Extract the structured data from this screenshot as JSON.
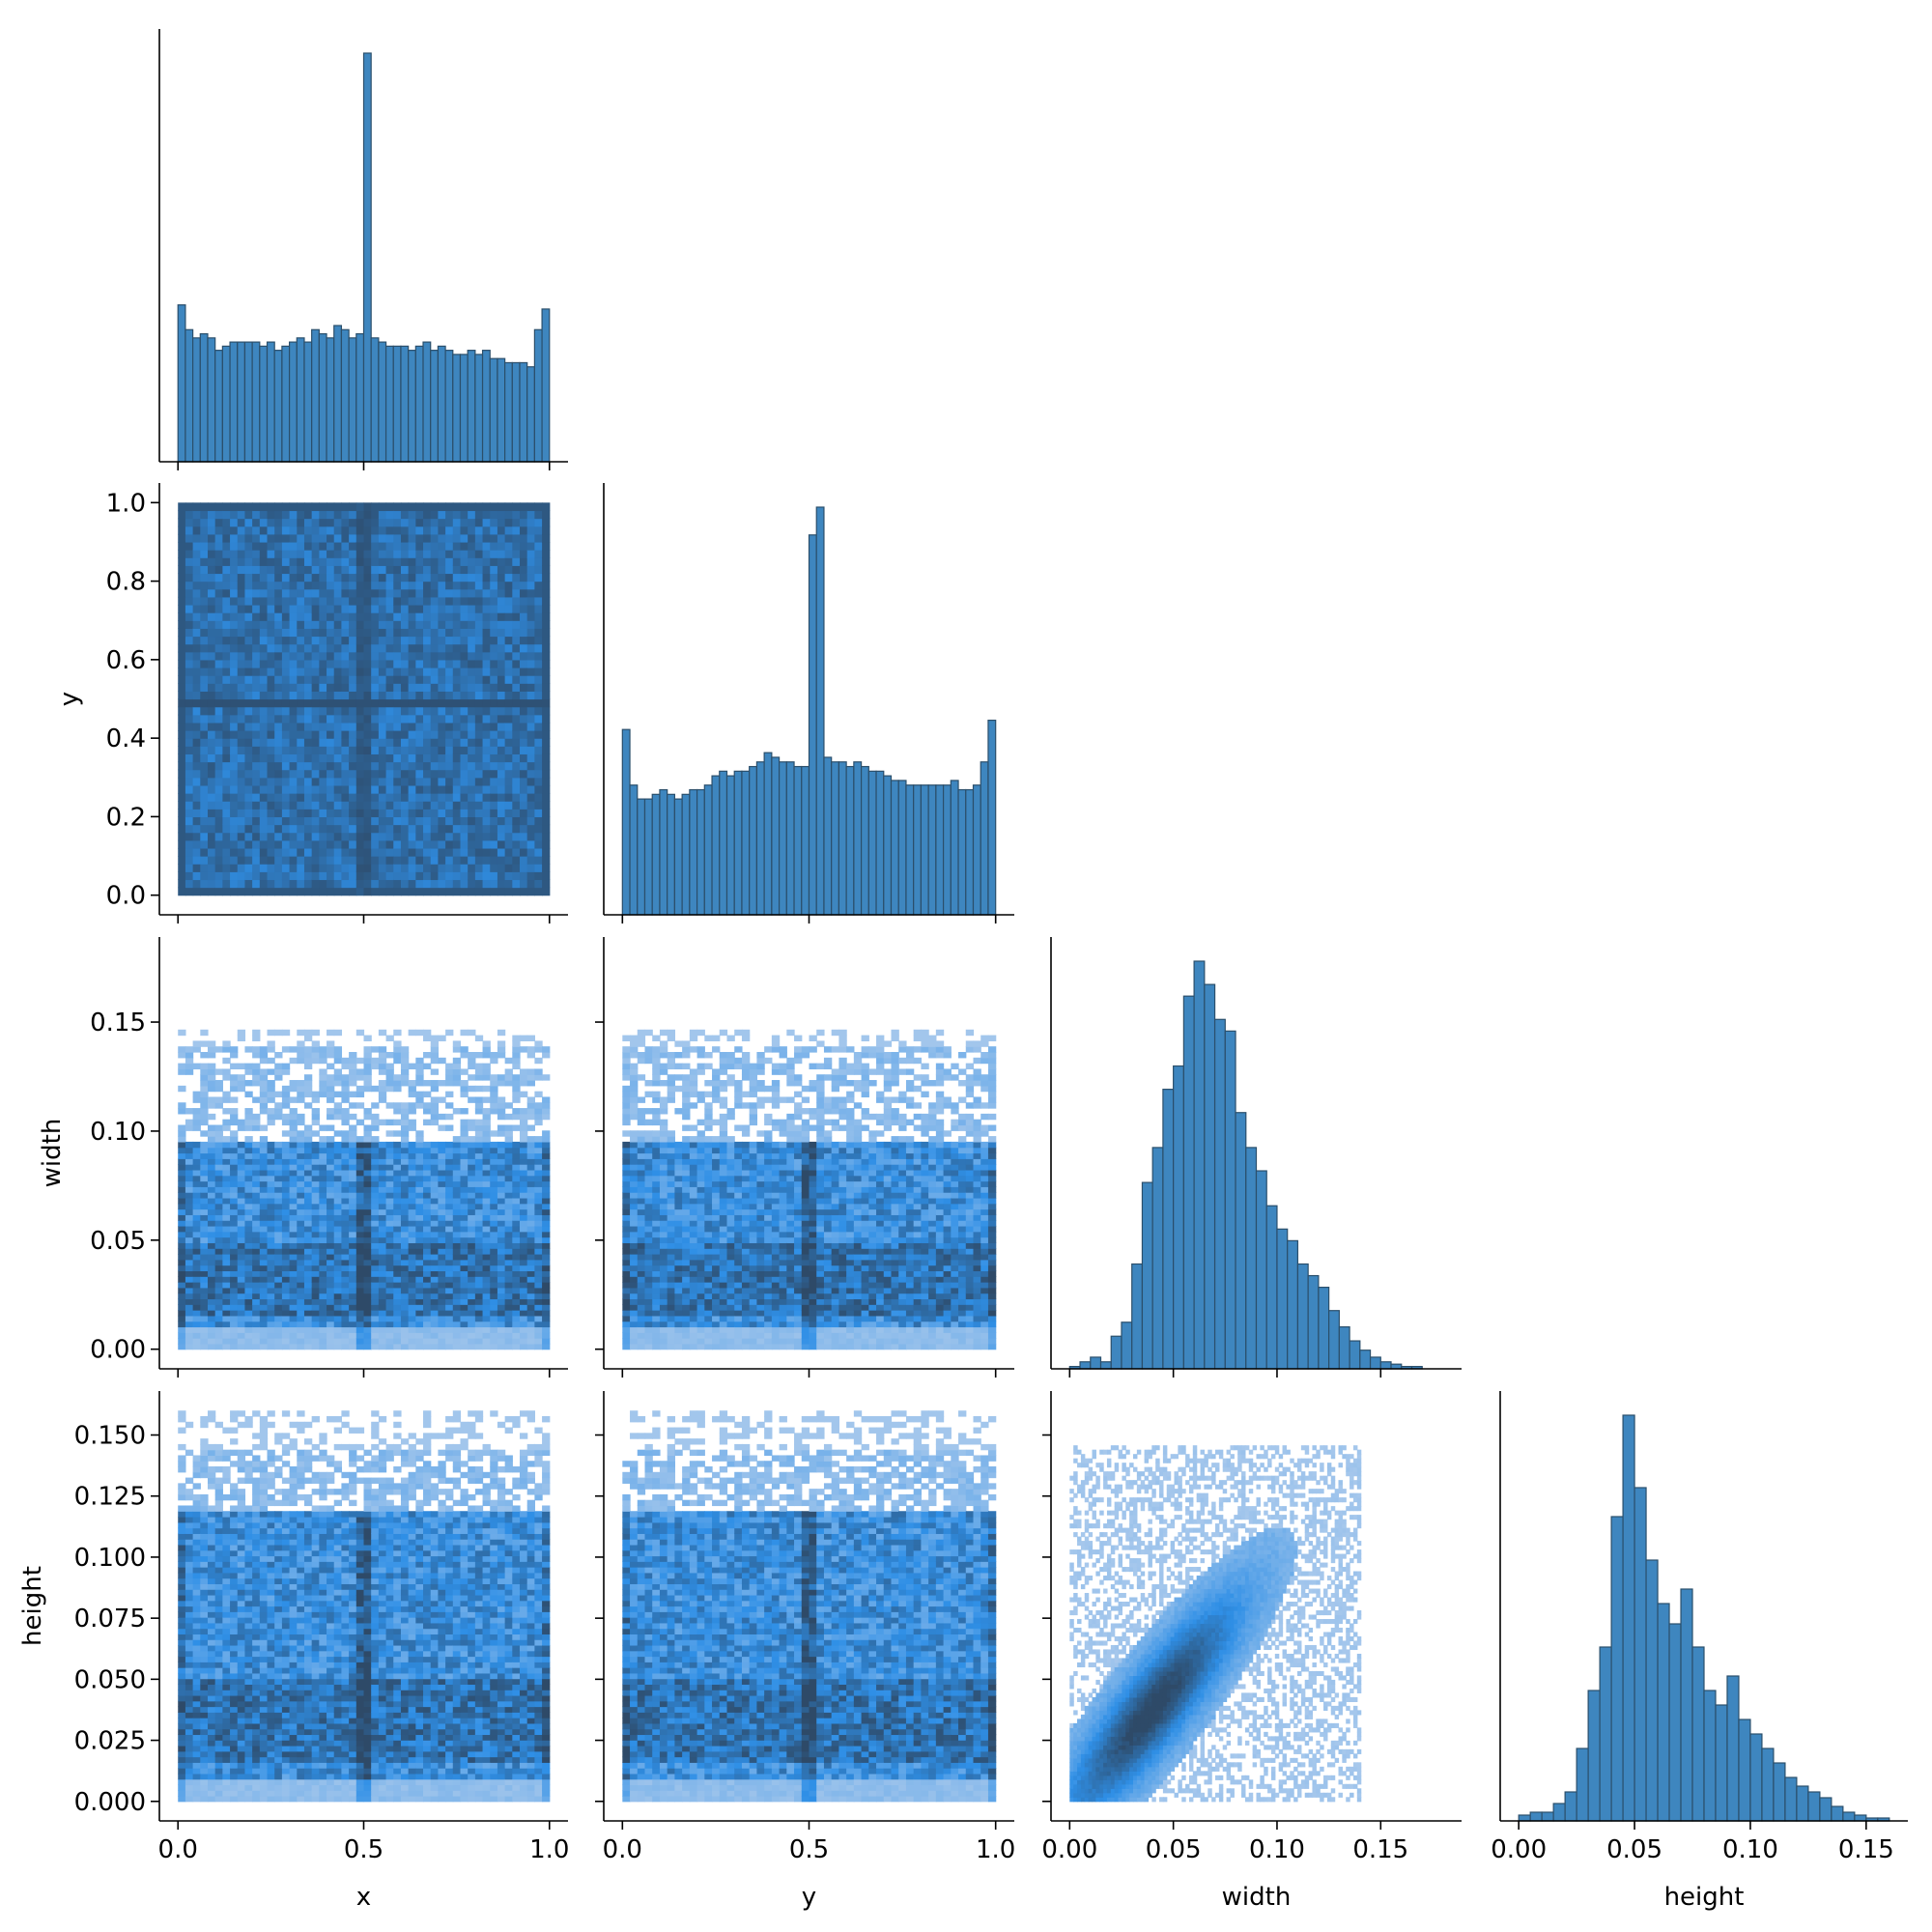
{
  "colors": {
    "hist_fill": "#3e86bf",
    "hist_edge": "#2b4f6b",
    "heat_low": "#a7c8ec",
    "heat_mid": "#2f8fe6",
    "heat_high": "#2e4a68",
    "axis": "#000000"
  },
  "chart_data": {
    "type": "pairplot-corner",
    "variables": [
      "x",
      "y",
      "width",
      "height"
    ],
    "axis_labels": {
      "x": "x",
      "y": "y",
      "width": "width",
      "height": "height"
    },
    "ranges": {
      "x": [
        0.0,
        1.0
      ],
      "y": [
        0.0,
        1.0
      ],
      "width": [
        0.0,
        0.18
      ],
      "height": [
        0.0,
        0.16
      ]
    },
    "ticks": {
      "x": {
        "values": [
          0.0,
          0.5,
          1.0
        ],
        "labels": [
          "0.0",
          "0.5",
          "1.0"
        ]
      },
      "y": {
        "values": [
          0.0,
          0.2,
          0.4,
          0.6,
          0.8,
          1.0
        ],
        "labels": [
          "0.0",
          "0.2",
          "0.4",
          "0.6",
          "0.8",
          "1.0"
        ]
      },
      "y_bottom": {
        "values": [
          0.0,
          0.5,
          1.0
        ],
        "labels": [
          "0.0",
          "0.5",
          "1.0"
        ]
      },
      "width": {
        "values": [
          0.0,
          0.05,
          0.1,
          0.15
        ],
        "labels": [
          "0.00",
          "0.05",
          "0.10",
          "0.15"
        ]
      },
      "height": {
        "values": [
          0.0,
          0.025,
          0.05,
          0.075,
          0.1,
          0.125,
          0.15
        ],
        "labels": [
          "0.000",
          "0.025",
          "0.050",
          "0.075",
          "0.100",
          "0.125",
          "0.150"
        ]
      },
      "height_bottom": {
        "values": [
          0.0,
          0.05,
          0.1,
          0.15
        ],
        "labels": [
          "0.00",
          "0.05",
          "0.10",
          "0.15"
        ]
      }
    },
    "histograms": {
      "x": {
        "bin_start": 0.0,
        "bin_width": 0.02,
        "counts": [
          38,
          32,
          30,
          31,
          30,
          27,
          28,
          29,
          29,
          29,
          29,
          28,
          29,
          27,
          28,
          29,
          30,
          29,
          32,
          31,
          30,
          33,
          32,
          30,
          31,
          99,
          30,
          29,
          28,
          28,
          28,
          27,
          28,
          29,
          27,
          28,
          27,
          26,
          26,
          27,
          26,
          27,
          25,
          25,
          24,
          24,
          24,
          23,
          32,
          37
        ]
      },
      "y": {
        "bin_start": 0.0,
        "bin_width": 0.02,
        "counts": [
          40,
          28,
          25,
          25,
          26,
          27,
          26,
          25,
          26,
          27,
          27,
          28,
          30,
          31,
          30,
          31,
          31,
          32,
          33,
          35,
          34,
          33,
          33,
          32,
          32,
          82,
          88,
          34,
          33,
          33,
          32,
          33,
          32,
          31,
          31,
          30,
          29,
          29,
          28,
          28,
          28,
          28,
          28,
          28,
          29,
          27,
          27,
          28,
          33,
          42
        ]
      },
      "width": {
        "bin_start": 0.0,
        "bin_width": 0.005,
        "counts": [
          1,
          3,
          5,
          3,
          14,
          20,
          45,
          80,
          95,
          120,
          130,
          160,
          175,
          165,
          150,
          145,
          110,
          95,
          85,
          70,
          60,
          55,
          45,
          40,
          35,
          25,
          18,
          12,
          8,
          5,
          3,
          2,
          1,
          1,
          0,
          0,
          0
        ]
      },
      "height": {
        "bin_start": 0.0,
        "bin_width": 0.005,
        "counts": [
          2,
          3,
          3,
          6,
          10,
          25,
          45,
          60,
          105,
          140,
          115,
          90,
          75,
          68,
          80,
          60,
          45,
          40,
          50,
          35,
          30,
          25,
          20,
          15,
          12,
          10,
          8,
          5,
          3,
          2,
          1,
          1,
          0,
          0
        ]
      }
    },
    "joint": {
      "y_vs_x": "dense uniform grid over [0,1]x[0,1]; darker bands at x=0.5 and y=0.5",
      "width_vs_x": "dense below width 0.10, dark band at x=0.5 and at edges",
      "width_vs_y": "dense below width 0.10, dark band at y=0.5",
      "height_vs_x": "dense below height 0.12, dark band at x=0.5",
      "height_vs_y": "dense below height 0.12, dark band at y=0.5",
      "height_vs_width": "positive correlation; dark diagonal from (0.02,0.02) to (0.07,0.065)"
    }
  }
}
